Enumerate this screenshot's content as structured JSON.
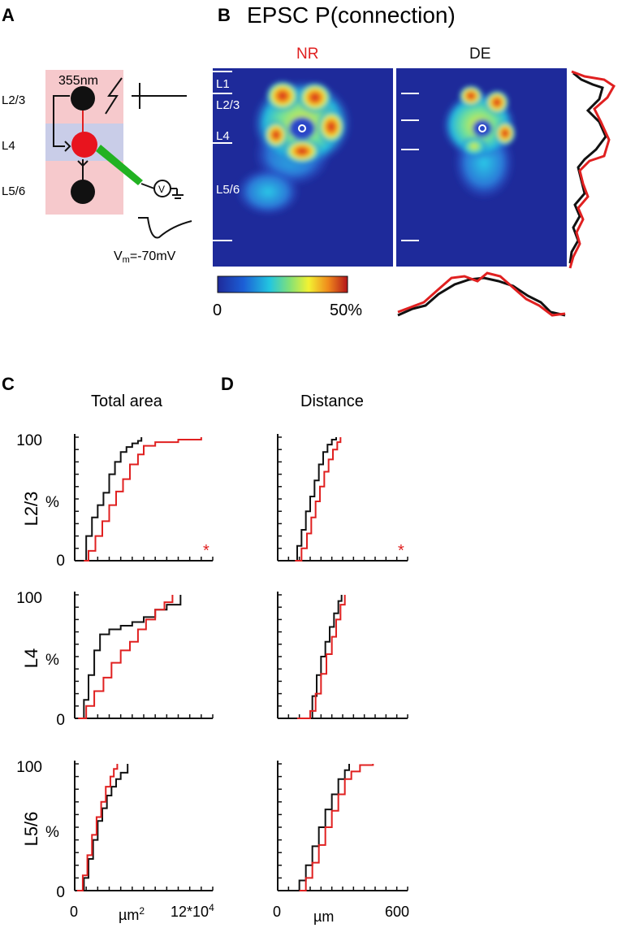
{
  "panels": {
    "a": {
      "letter": "A",
      "wavelength": "355nm",
      "layers": [
        "L2/3",
        "L4",
        "L5/6"
      ],
      "voltage": "-70mV",
      "vm_base": "V",
      "vm_sub": "m",
      "voltage_suffix": "=-70mV"
    },
    "b": {
      "letter": "B",
      "title": "EPSC P(connection)",
      "map_left_label": "NR",
      "map_right_label": "DE",
      "layer_labels": [
        "L1",
        "L2/3",
        "L4",
        "L5/6"
      ],
      "colorbar_min": "0",
      "colorbar_max": "50%"
    },
    "c": {
      "letter": "C",
      "title": "Total area"
    },
    "d": {
      "letter": "D",
      "title": "Distance"
    }
  },
  "colors": {
    "NR": "#e02020",
    "DE": "#111111",
    "background": "#1e2a9a"
  },
  "axes": {
    "c_row_ylabels": [
      "L2/3",
      "L4",
      "L5/6"
    ],
    "y_unit": "%",
    "y_ticks": [
      "0",
      "100"
    ],
    "c_x_ticks": [
      "0",
      "12*10"
    ],
    "c_x_exp": "4",
    "c_x_unit_base": "µm",
    "c_x_unit_exp": "2",
    "d_x_ticks": [
      "0",
      "600"
    ],
    "d_x_unit": "µm",
    "significance": "*"
  },
  "chart_data": [
    {
      "type": "line",
      "panel": "C",
      "row": "L2/3",
      "xlim": [
        0,
        120000
      ],
      "ylim": [
        0,
        100
      ],
      "significant": true,
      "series": [
        {
          "name": "DE",
          "color": "#111111",
          "x": [
            5000,
            10000,
            15000,
            20000,
            25000,
            30000,
            35000,
            40000,
            45000,
            50000,
            55000,
            58000
          ],
          "y": [
            0,
            20,
            35,
            45,
            55,
            70,
            80,
            88,
            92,
            95,
            97,
            100
          ]
        },
        {
          "name": "NR",
          "color": "#e02020",
          "x": [
            8000,
            12000,
            18000,
            24000,
            30000,
            36000,
            42000,
            48000,
            55000,
            60000,
            70000,
            90000,
            110000
          ],
          "y": [
            0,
            8,
            20,
            32,
            45,
            56,
            66,
            78,
            86,
            93,
            96,
            98,
            100
          ]
        }
      ]
    },
    {
      "type": "line",
      "panel": "C",
      "row": "L4",
      "xlim": [
        0,
        120000
      ],
      "ylim": [
        0,
        100
      ],
      "significant": false,
      "series": [
        {
          "name": "DE",
          "color": "#111111",
          "x": [
            3000,
            8000,
            12000,
            17000,
            22000,
            30000,
            40000,
            50000,
            60000,
            70000,
            80000,
            92000
          ],
          "y": [
            0,
            15,
            35,
            55,
            68,
            72,
            75,
            78,
            82,
            88,
            92,
            100
          ]
        },
        {
          "name": "NR",
          "color": "#e02020",
          "x": [
            3000,
            10000,
            17000,
            25000,
            32000,
            40000,
            48000,
            55000,
            62000,
            70000,
            78000,
            85000
          ],
          "y": [
            0,
            10,
            22,
            33,
            45,
            55,
            62,
            72,
            80,
            88,
            94,
            100
          ]
        }
      ]
    },
    {
      "type": "line",
      "panel": "C",
      "row": "L5/6",
      "xlim": [
        0,
        120000
      ],
      "ylim": [
        0,
        100
      ],
      "significant": false,
      "series": [
        {
          "name": "DE",
          "color": "#111111",
          "x": [
            2000,
            8000,
            12000,
            16000,
            20000,
            24000,
            28000,
            32000,
            36000,
            40000,
            46000
          ],
          "y": [
            0,
            10,
            25,
            40,
            55,
            65,
            75,
            82,
            88,
            93,
            100
          ]
        },
        {
          "name": "NR",
          "color": "#e02020",
          "x": [
            2000,
            7000,
            11000,
            15000,
            19000,
            23000,
            27000,
            31000,
            34000,
            37000
          ],
          "y": [
            0,
            12,
            28,
            44,
            58,
            70,
            82,
            90,
            96,
            100
          ]
        }
      ]
    },
    {
      "type": "line",
      "panel": "D",
      "row": "L2/3",
      "xlim": [
        0,
        600
      ],
      "ylim": [
        0,
        100
      ],
      "significant": true,
      "series": [
        {
          "name": "DE",
          "color": "#111111",
          "x": [
            60,
            90,
            110,
            130,
            150,
            170,
            190,
            210,
            230,
            250,
            270
          ],
          "y": [
            0,
            12,
            25,
            40,
            52,
            65,
            78,
            88,
            94,
            98,
            100
          ]
        },
        {
          "name": "NR",
          "color": "#e02020",
          "x": [
            80,
            110,
            135,
            155,
            175,
            195,
            215,
            235,
            255,
            275,
            290
          ],
          "y": [
            0,
            10,
            22,
            35,
            48,
            60,
            72,
            82,
            90,
            96,
            100
          ]
        }
      ]
    },
    {
      "type": "line",
      "panel": "D",
      "row": "L4",
      "xlim": [
        0,
        600
      ],
      "ylim": [
        0,
        100
      ],
      "significant": false,
      "series": [
        {
          "name": "DE",
          "color": "#111111",
          "x": [
            140,
            160,
            180,
            200,
            220,
            240,
            260,
            280,
            295
          ],
          "y": [
            0,
            18,
            35,
            50,
            62,
            74,
            85,
            95,
            100
          ]
        },
        {
          "name": "NR",
          "color": "#e02020",
          "x": [
            90,
            150,
            175,
            200,
            225,
            250,
            270,
            290,
            310
          ],
          "y": [
            0,
            6,
            20,
            36,
            52,
            66,
            80,
            92,
            100
          ]
        }
      ]
    },
    {
      "type": "line",
      "panel": "D",
      "row": "L5/6",
      "xlim": [
        0,
        600
      ],
      "ylim": [
        0,
        100
      ],
      "significant": false,
      "series": [
        {
          "name": "DE",
          "color": "#111111",
          "x": [
            70,
            100,
            130,
            160,
            190,
            220,
            250,
            280,
            310,
            330
          ],
          "y": [
            0,
            8,
            20,
            35,
            50,
            64,
            76,
            88,
            95,
            100
          ]
        },
        {
          "name": "NR",
          "color": "#e02020",
          "x": [
            100,
            130,
            160,
            190,
            220,
            250,
            280,
            310,
            340,
            380,
            440
          ],
          "y": [
            0,
            10,
            22,
            36,
            50,
            63,
            76,
            88,
            94,
            99,
            100
          ]
        }
      ]
    }
  ]
}
